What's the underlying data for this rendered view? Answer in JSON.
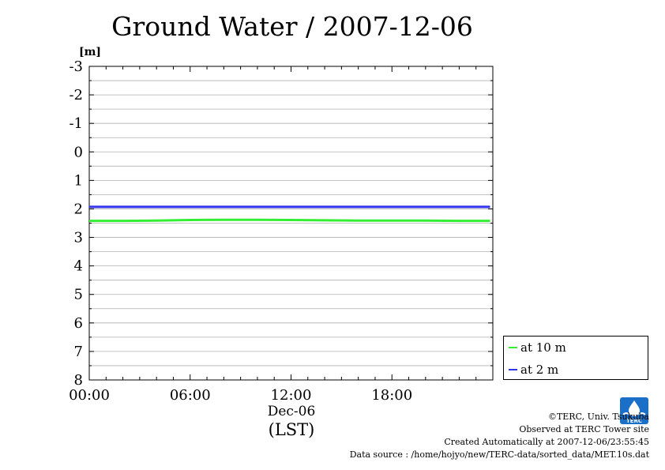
{
  "colors": {
    "at10": "#33ee33",
    "at2": "#3333ee",
    "grid": "#b0b0b0"
  },
  "chart_data": {
    "type": "line",
    "title": "Ground Water / 2007-12-06",
    "ylabel": "[m]",
    "xlabel": "(LST)",
    "date_label": "Dec-06",
    "y_inverted": true,
    "ylim": [
      -3,
      8
    ],
    "y_ticks": [
      "-3",
      "-2",
      "-1",
      "0",
      "1",
      "2",
      "3",
      "4",
      "5",
      "6",
      "7",
      "8"
    ],
    "xlim": [
      "2007-12-06 00:00",
      "2007-12-07 00:00"
    ],
    "x_ticks": [
      "00:00",
      "06:00",
      "12:00",
      "18:00"
    ],
    "grid": true,
    "legend_position": "bottom-right, outside plot",
    "series": [
      {
        "name": "at 10 m",
        "x": [
          "00:00",
          "02:00",
          "04:00",
          "06:00",
          "08:00",
          "10:00",
          "12:00",
          "14:00",
          "16:00",
          "18:00",
          "20:00",
          "22:00",
          "23:50"
        ],
        "values": [
          2.42,
          2.42,
          2.41,
          2.39,
          2.38,
          2.38,
          2.39,
          2.4,
          2.41,
          2.41,
          2.41,
          2.42,
          2.42
        ]
      },
      {
        "name": "at 2 m",
        "x": [
          "00:00",
          "02:00",
          "04:00",
          "06:00",
          "08:00",
          "10:00",
          "12:00",
          "14:00",
          "16:00",
          "18:00",
          "20:00",
          "22:00",
          "23:50"
        ],
        "values": [
          1.93,
          1.93,
          1.93,
          1.93,
          1.93,
          1.93,
          1.93,
          1.93,
          1.93,
          1.93,
          1.93,
          1.93,
          1.93
        ]
      }
    ]
  },
  "footer": {
    "copyright": "©TERC, Univ. Tsukuba",
    "observed": "Observed at TERC Tower site",
    "created": "Created Automatically at 2007-12-06/23:55:45",
    "source": "Data source : /home/hojyo/new/TERC-data/sorted_data/MET.10s.dat"
  },
  "logo": {
    "icon": "terc-logo-icon",
    "text": "TERC"
  }
}
